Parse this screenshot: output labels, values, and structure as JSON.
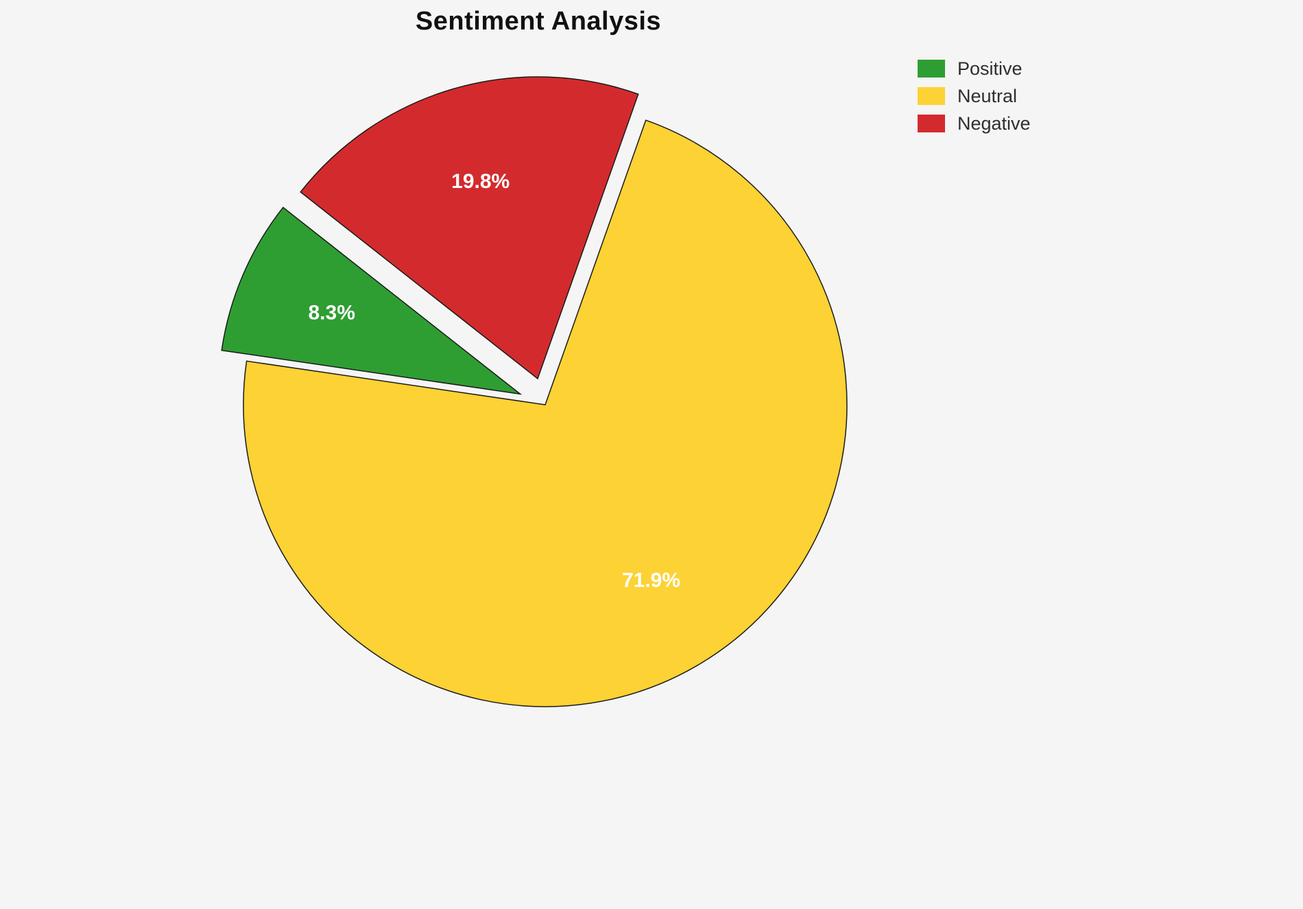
{
  "chart_data": {
    "type": "pie",
    "title": "Sentiment Analysis",
    "labels": [
      "Positive",
      "Neutral",
      "Negative"
    ],
    "values": [
      8.3,
      71.9,
      19.8
    ],
    "value_labels": [
      "8.3%",
      "71.9%",
      "19.8%"
    ],
    "colors": [
      "#2e9e33",
      "#fcd235",
      "#d32b2d"
    ],
    "explode": [
      0.09,
      0,
      0.09
    ],
    "start_angle": 141.8,
    "direction": "counterclockwise",
    "edge_color": "#1a1a1a",
    "background": "#f5f5f5",
    "legend": {
      "position": "top-right",
      "entries": [
        "Positive",
        "Neutral",
        "Negative"
      ]
    }
  }
}
